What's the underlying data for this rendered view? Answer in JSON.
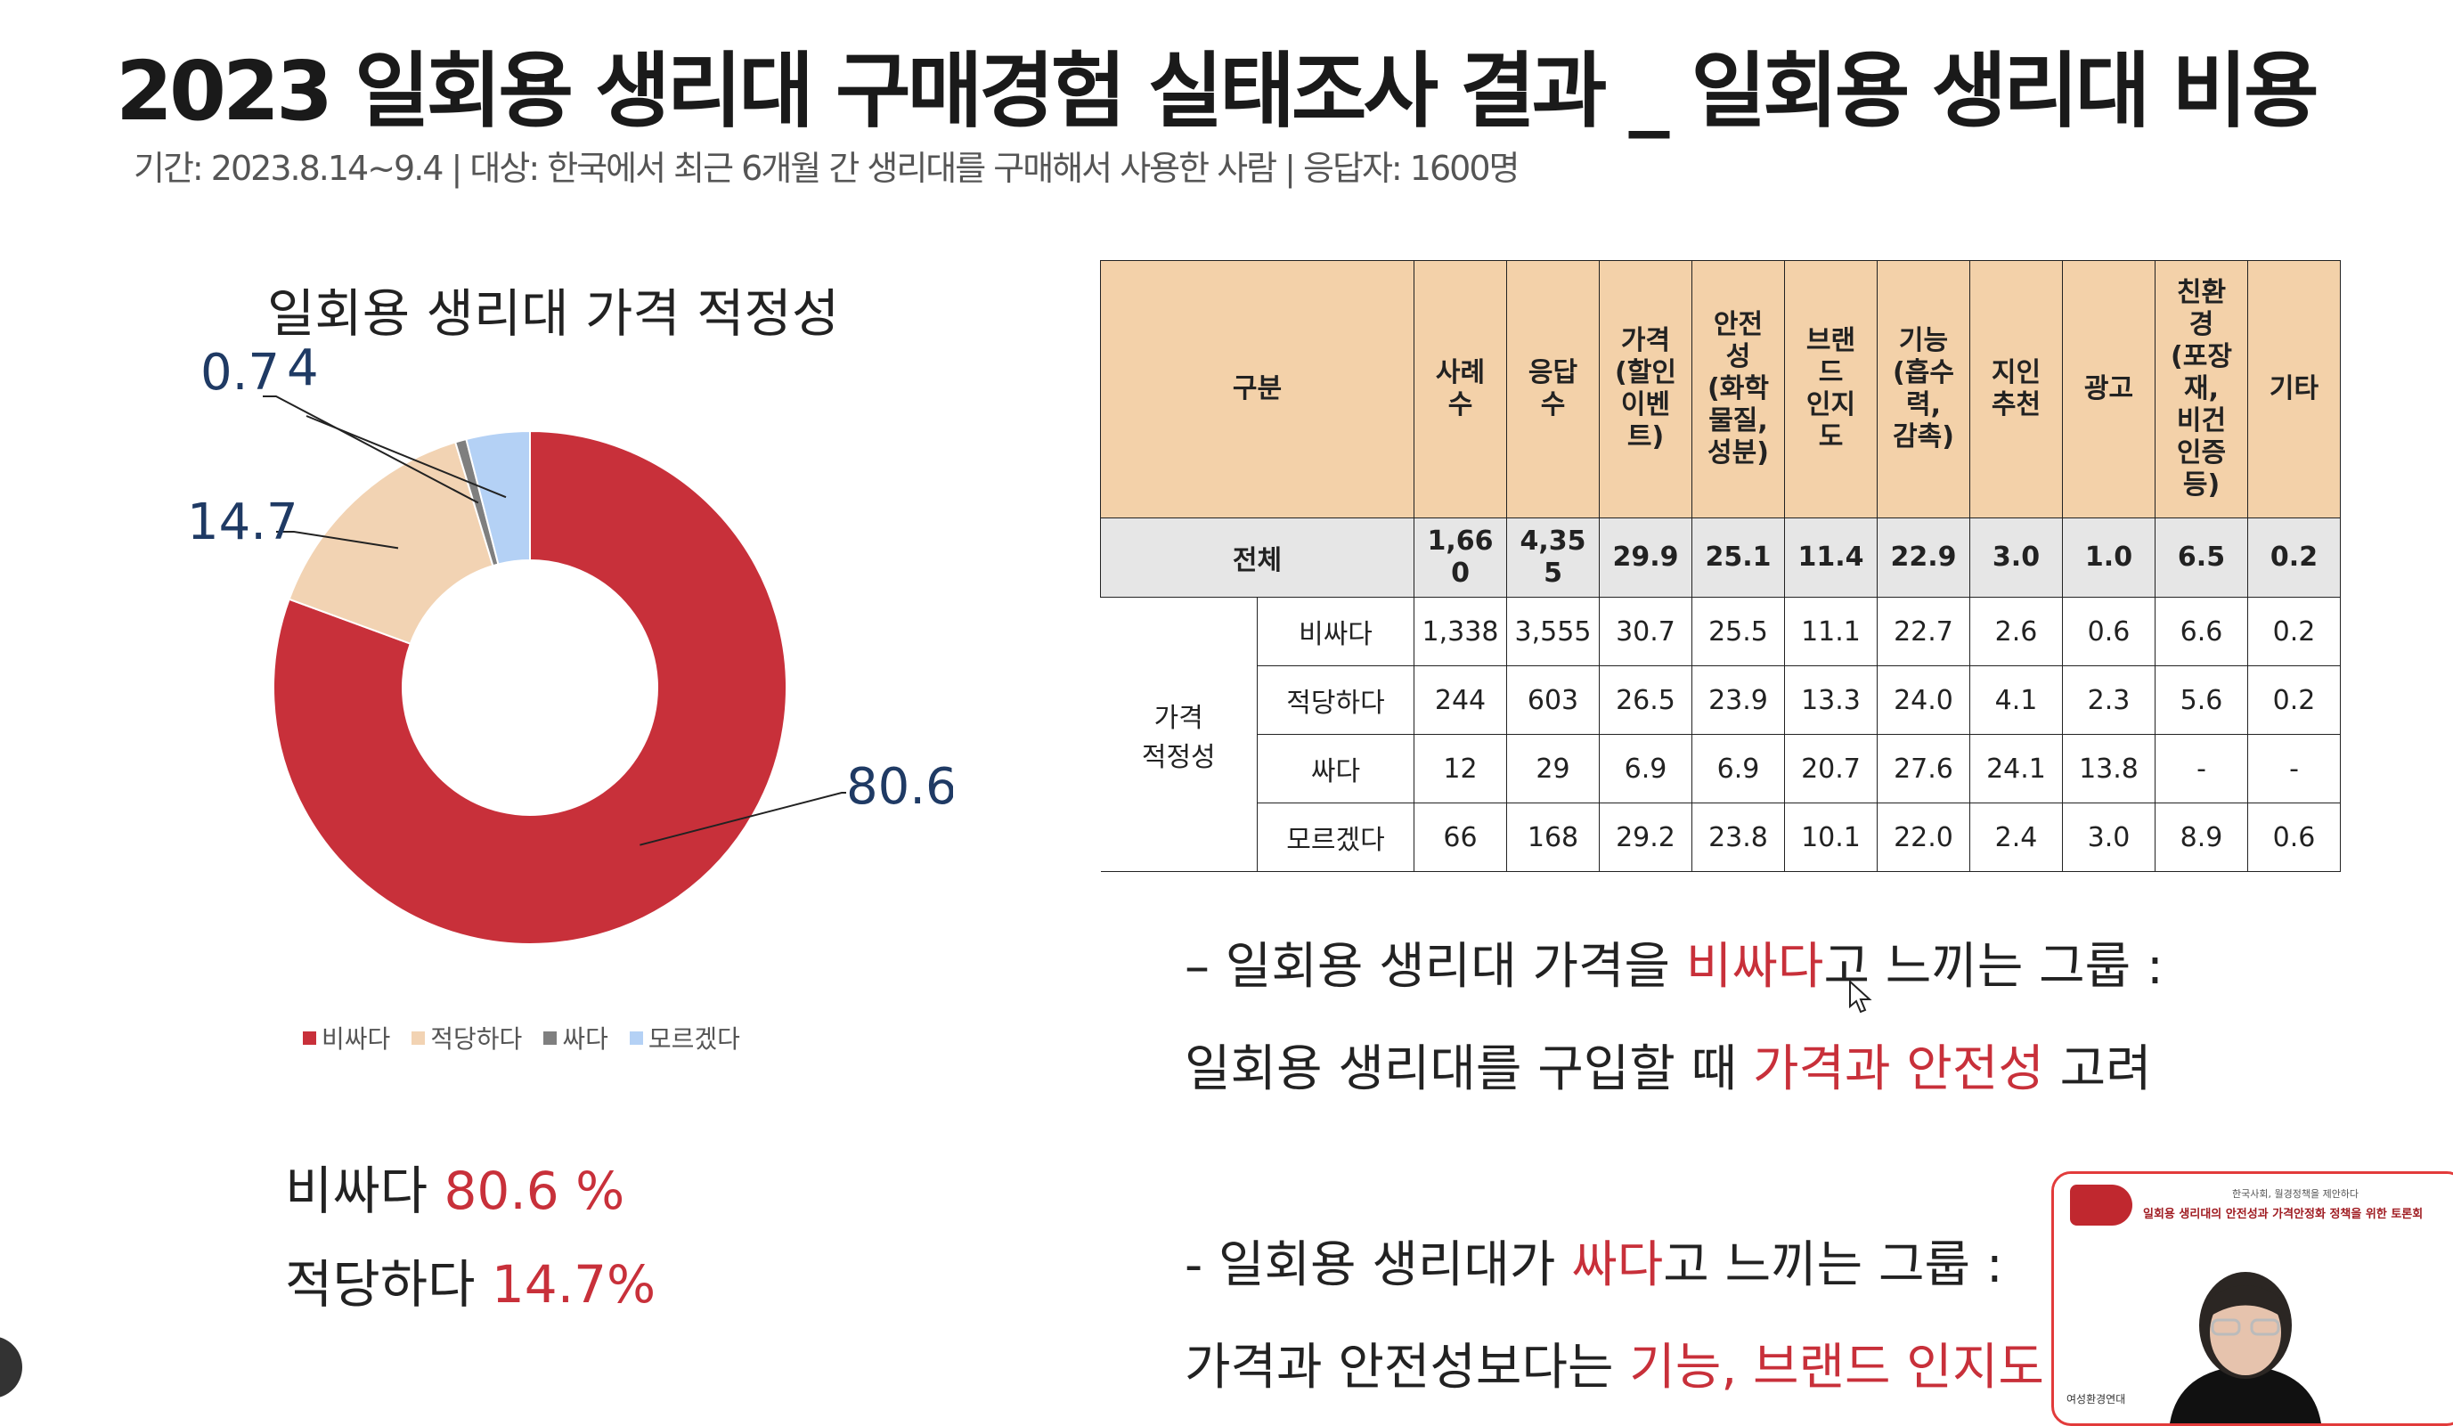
{
  "header": {
    "title": "2023 일회용 생리대 구매경험 실태조사  결과 _ 일회용 생리대 비용",
    "subtitle": "기간: 2023.8.14~9.4  |  대상: 한국에서 최근 6개월 간 생리대를 구매해서 사용한 사람  |  응답자: 1600명"
  },
  "chart_data": {
    "type": "pie",
    "variant": "donut",
    "title": "일회용 생리대 가격 적정성",
    "categories": [
      "비싸다",
      "적당하다",
      "싸다",
      "모르겠다"
    ],
    "values": [
      80.6,
      14.7,
      0.7,
      4
    ],
    "labels": [
      "80.6",
      "14.7",
      "0.7",
      "4"
    ],
    "colors": [
      "#c8303a",
      "#f2d3b3",
      "#7f7f7f",
      "#b4d1f5"
    ],
    "legend_position": "bottom"
  },
  "summary": [
    {
      "label": "비싸다 ",
      "value": "80.6 %"
    },
    {
      "label": "적당하다 ",
      "value": "14.7%"
    }
  ],
  "table": {
    "header": {
      "col0": "구분",
      "cols": [
        "사례\n수",
        "응답\n수",
        "가격\n(할인\n이벤\n트)",
        "안전\n성\n(화학\n물질,\n성분)",
        "브랜\n드\n인지\n도",
        "기능\n(흡수\n력,\n감촉)",
        "지인\n추천",
        "광고",
        "친환\n경\n(포장\n재,\n비건\n인증\n등)",
        "기타"
      ]
    },
    "total": {
      "label": "전체",
      "cells": [
        "1,66\n0",
        "4,35\n5",
        "29.9",
        "25.1",
        "11.4",
        "22.9",
        "3.0",
        "1.0",
        "6.5",
        "0.2"
      ]
    },
    "group_label": "가격\n적정성",
    "rows": [
      {
        "label": "비싸다",
        "cells": [
          "1,338",
          "3,555",
          "30.7",
          "25.5",
          "11.1",
          "22.7",
          "2.6",
          "0.6",
          "6.6",
          "0.2"
        ]
      },
      {
        "label": "적당하다",
        "cells": [
          "244",
          "603",
          "26.5",
          "23.9",
          "13.3",
          "24.0",
          "4.1",
          "2.3",
          "5.6",
          "0.2"
        ]
      },
      {
        "label": "싸다",
        "cells": [
          "12",
          "29",
          "6.9",
          "6.9",
          "20.7",
          "27.6",
          "24.1",
          "13.8",
          "-",
          "-"
        ]
      },
      {
        "label": "모르겠다",
        "cells": [
          "66",
          "168",
          "29.2",
          "23.8",
          "10.1",
          "22.0",
          "2.4",
          "3.0",
          "8.9",
          "0.6"
        ]
      }
    ]
  },
  "notes": {
    "n1a": "– 일회용 생리대 가격을 ",
    "n1b": "비싸다",
    "n1c": "고 느끼는 그룹 :",
    "n2a": "일회용 생리대를 구입할 때 ",
    "n2b": "가격과 안전성",
    "n2c": " 고려",
    "n3a": "- 일회용 생리대가 ",
    "n3b": "싸다",
    "n3c": "고 느끼는 그룹 :",
    "n4a": "가격과 안전성보다는 ",
    "n4b": "기능, 브랜드 인지도"
  },
  "webcam": {
    "line1": "한국사회, 월경정책을 제안하다",
    "line2": "일회용 생리대의 안전성과 가격안정화 정책을 위한 토론회",
    "org": "여성환경연대"
  }
}
